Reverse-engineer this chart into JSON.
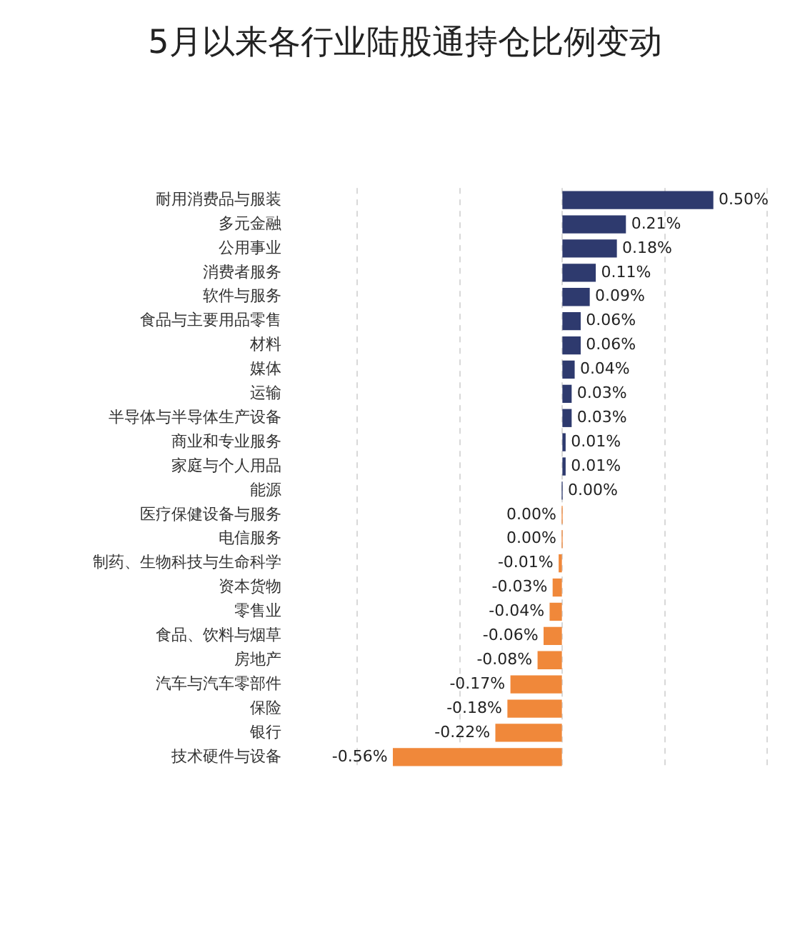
{
  "chart_data": {
    "type": "bar",
    "orientation": "horizontal",
    "title": "5月以来各行业陆股通持仓比例变动",
    "categories": [
      "耐用消费品与服装",
      "多元金融",
      "公用事业",
      "消费者服务",
      "软件与服务",
      "食品与主要用品零售",
      "材料",
      "媒体",
      "运输",
      "半导体与半导体生产设备",
      "商业和专业服务",
      "家庭与个人用品",
      "能源",
      "医疗保健设备与服务",
      "电信服务",
      "制药、生物科技与生命科学",
      "资本货物",
      "零售业",
      "食品、饮料与烟草",
      "房地产",
      "汽车与汽车零部件",
      "保险",
      "银行",
      "技术硬件与设备"
    ],
    "values": [
      0.5,
      0.21,
      0.18,
      0.11,
      0.09,
      0.06,
      0.06,
      0.04,
      0.03,
      0.03,
      0.01,
      0.01,
      0.0,
      0.0,
      0.0,
      -0.01,
      -0.03,
      -0.04,
      -0.06,
      -0.08,
      -0.17,
      -0.18,
      -0.22,
      -0.56
    ],
    "value_labels": [
      "0.50%",
      "0.21%",
      "0.18%",
      "0.11%",
      "0.09%",
      "0.06%",
      "0.06%",
      "0.04%",
      "0.03%",
      "0.03%",
      "0.01%",
      "0.01%",
      "0.00%",
      "0.00%",
      "0.00%",
      "-0.01%",
      "-0.03%",
      "-0.04%",
      "-0.06%",
      "-0.08%",
      "-0.17%",
      "-0.18%",
      "-0.22%",
      "-0.56%"
    ],
    "colors": [
      "#2e3a6e",
      "#2e3a6e",
      "#2e3a6e",
      "#2e3a6e",
      "#2e3a6e",
      "#2e3a6e",
      "#2e3a6e",
      "#2e3a6e",
      "#2e3a6e",
      "#2e3a6e",
      "#2e3a6e",
      "#2e3a6e",
      "#2e3a6e",
      "#f0883a",
      "#f0883a",
      "#f0883a",
      "#f0883a",
      "#f0883a",
      "#f0883a",
      "#f0883a",
      "#f0883a",
      "#f0883a",
      "#f0883a",
      "#f0883a"
    ],
    "xlim": [
      -0.68,
      0.68
    ],
    "xticks": [
      {
        "value": -0.68,
        "label": null
      },
      {
        "value": -0.34,
        "label": null
      },
      {
        "value": 0,
        "label": null
      },
      {
        "value": 0.34,
        "label": null
      },
      {
        "value": 0.68,
        "label": null
      }
    ],
    "grid": "x",
    "tick_labels": "y",
    "legend": false
  }
}
